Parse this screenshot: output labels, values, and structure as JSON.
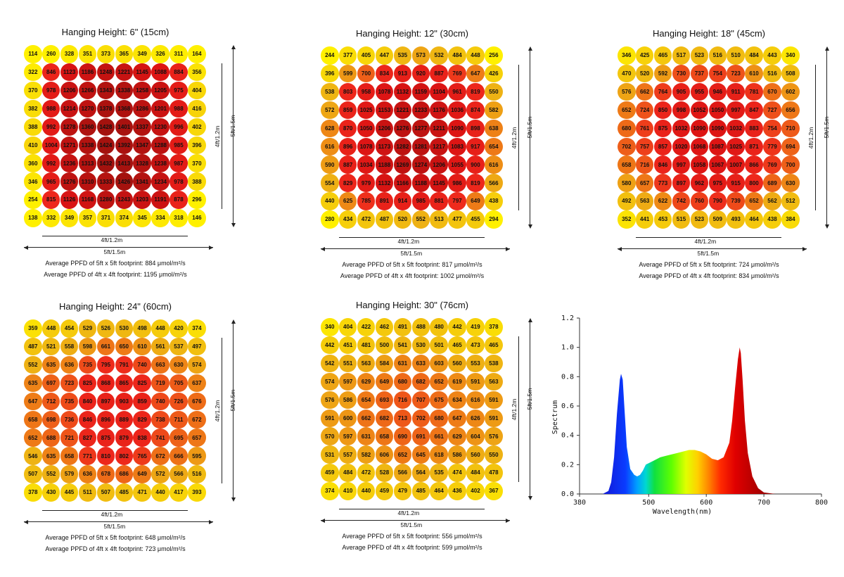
{
  "dims": {
    "inner": "4ft/1.2m",
    "outer": "5ft/1.5m"
  },
  "avg_5ft_label": "Average PPFD of 5ft x 5ft footprint:",
  "avg_4ft_label": "Average PPFD of 4ft x 4ft footprint:",
  "unit": "μmol/m²/s",
  "color_scale": {
    "low": "#ffff00",
    "mid": "#eaa00a",
    "high": "#e81e1e",
    "top": "#b01410"
  },
  "chart_data": [
    {
      "type": "heatmap",
      "title": "Hanging Height: 6\" (15cm)",
      "avg_5ft": "884",
      "avg_4ft": "1195",
      "grid": [
        [
          114,
          260,
          328,
          351,
          373,
          365,
          349,
          326,
          311,
          164
        ],
        [
          322,
          846,
          1123,
          1186,
          1248,
          1221,
          1145,
          1088,
          884,
          356
        ],
        [
          370,
          978,
          1206,
          1266,
          1343,
          1338,
          1258,
          1205,
          975,
          404
        ],
        [
          382,
          988,
          1214,
          1270,
          1378,
          1368,
          1286,
          1201,
          988,
          416
        ],
        [
          388,
          992,
          1278,
          1360,
          1428,
          1401,
          1337,
          1230,
          996,
          402
        ],
        [
          410,
          1004,
          1271,
          1338,
          1424,
          1392,
          1347,
          1288,
          985,
          396
        ],
        [
          360,
          992,
          1236,
          1313,
          1432,
          1413,
          1328,
          1238,
          987,
          370
        ],
        [
          346,
          965,
          1276,
          1310,
          1333,
          1426,
          1341,
          1234,
          978,
          388
        ],
        [
          254,
          815,
          1126,
          1168,
          1280,
          1243,
          1203,
          1191,
          878,
          296
        ],
        [
          138,
          332,
          349,
          357,
          371,
          374,
          345,
          334,
          318,
          146
        ]
      ]
    },
    {
      "type": "heatmap",
      "title": "Hanging Height: 12\" (30cm)",
      "avg_5ft": "817",
      "avg_4ft": "1002",
      "grid": [
        [
          244,
          377,
          405,
          447,
          535,
          573,
          532,
          484,
          448,
          256
        ],
        [
          396,
          599,
          700,
          834,
          913,
          920,
          887,
          769,
          647,
          426
        ],
        [
          538,
          803,
          958,
          1078,
          1132,
          1159,
          1104,
          961,
          819,
          550
        ],
        [
          572,
          859,
          1025,
          1153,
          1221,
          1233,
          1176,
          1036,
          874,
          582
        ],
        [
          628,
          870,
          1050,
          1206,
          1276,
          1277,
          1211,
          1090,
          898,
          638
        ],
        [
          616,
          896,
          1078,
          1173,
          1282,
          1281,
          1217,
          1083,
          917,
          654
        ],
        [
          590,
          887,
          1034,
          1188,
          1269,
          1274,
          1206,
          1055,
          900,
          616
        ],
        [
          554,
          829,
          979,
          1132,
          1166,
          1188,
          1145,
          986,
          819,
          566
        ],
        [
          440,
          625,
          785,
          891,
          914,
          985,
          881,
          797,
          649,
          438
        ],
        [
          280,
          434,
          472,
          487,
          520,
          552,
          513,
          477,
          455,
          294
        ]
      ]
    },
    {
      "type": "heatmap",
      "title": "Hanging Height: 18\" (45cm)",
      "avg_5ft": "724",
      "avg_4ft": "834",
      "grid": [
        [
          346,
          425,
          465,
          517,
          523,
          516,
          510,
          484,
          443,
          340
        ],
        [
          470,
          520,
          592,
          730,
          737,
          754,
          723,
          610,
          516,
          508
        ],
        [
          576,
          662,
          764,
          905,
          955,
          946,
          911,
          781,
          670,
          602
        ],
        [
          652,
          724,
          850,
          998,
          1052,
          1050,
          997,
          847,
          727,
          656
        ],
        [
          680,
          761,
          875,
          1032,
          1090,
          1090,
          1032,
          883,
          754,
          710
        ],
        [
          702,
          757,
          857,
          1020,
          1068,
          1087,
          1025,
          871,
          779,
          694
        ],
        [
          658,
          716,
          846,
          997,
          1058,
          1067,
          1007,
          866,
          769,
          700
        ],
        [
          580,
          657,
          773,
          897,
          962,
          975,
          915,
          800,
          689,
          630
        ],
        [
          492,
          563,
          622,
          742,
          760,
          790,
          739,
          652,
          562,
          512
        ],
        [
          352,
          441,
          453,
          515,
          523,
          509,
          493,
          464,
          438,
          384
        ]
      ]
    },
    {
      "type": "heatmap",
      "title": "Hanging Height: 24\" (60cm)",
      "avg_5ft": "648",
      "avg_4ft": "723",
      "grid": [
        [
          359,
          448,
          454,
          529,
          526,
          530,
          498,
          448,
          420,
          374
        ],
        [
          487,
          521,
          558,
          598,
          661,
          650,
          610,
          561,
          537,
          497
        ],
        [
          552,
          635,
          636,
          735,
          795,
          791,
          740,
          663,
          630,
          574
        ],
        [
          635,
          697,
          723,
          825,
          868,
          865,
          825,
          719,
          705,
          637
        ],
        [
          647,
          712,
          735,
          840,
          897,
          903,
          859,
          740,
          726,
          676
        ],
        [
          658,
          698,
          736,
          846,
          896,
          889,
          829,
          738,
          711,
          672
        ],
        [
          652,
          688,
          721,
          827,
          875,
          879,
          838,
          741,
          695,
          657
        ],
        [
          546,
          635,
          658,
          771,
          810,
          802,
          765,
          672,
          666,
          595
        ],
        [
          507,
          552,
          579,
          636,
          678,
          686,
          649,
          572,
          566,
          516
        ],
        [
          378,
          430,
          445,
          511,
          507,
          485,
          471,
          440,
          417,
          393
        ]
      ]
    },
    {
      "type": "heatmap",
      "title": "Hanging Height: 30\" (76cm)",
      "avg_5ft": "556",
      "avg_4ft": "599",
      "grid": [
        [
          340,
          404,
          422,
          462,
          491,
          488,
          480,
          442,
          419,
          378
        ],
        [
          442,
          451,
          481,
          500,
          541,
          530,
          501,
          465,
          473,
          465
        ],
        [
          542,
          551,
          563,
          584,
          631,
          633,
          603,
          560,
          553,
          538
        ],
        [
          574,
          597,
          629,
          649,
          680,
          682,
          652,
          619,
          591,
          563
        ],
        [
          576,
          586,
          654,
          693,
          716,
          707,
          675,
          634,
          616,
          591
        ],
        [
          591,
          600,
          662,
          682,
          713,
          702,
          680,
          647,
          626,
          591
        ],
        [
          570,
          597,
          631,
          658,
          690,
          691,
          661,
          629,
          604,
          576
        ],
        [
          531,
          557,
          582,
          606,
          652,
          645,
          618,
          586,
          560,
          550
        ],
        [
          459,
          484,
          472,
          528,
          566,
          564,
          535,
          474,
          484,
          478
        ],
        [
          374,
          410,
          440,
          459,
          479,
          485,
          464,
          436,
          402,
          367
        ]
      ]
    },
    {
      "type": "area",
      "xlabel": "Wavelength(nm)",
      "ylabel": "Spectrum",
      "xlim": [
        380,
        800
      ],
      "ylim": [
        0,
        1.2
      ],
      "xticks": [
        "380",
        "500",
        "600",
        "700",
        "800"
      ],
      "yticks": [
        "0.0",
        "0.2",
        "0.4",
        "0.6",
        "0.8",
        "1.0",
        "1.2"
      ],
      "x": [
        380,
        420,
        430,
        435,
        440,
        445,
        450,
        452,
        455,
        458,
        462,
        468,
        475,
        480,
        485,
        490,
        495,
        500,
        510,
        520,
        530,
        540,
        550,
        560,
        570,
        580,
        590,
        600,
        610,
        620,
        630,
        640,
        645,
        650,
        655,
        658,
        660,
        663,
        667,
        672,
        680,
        690,
        700,
        720,
        740,
        760,
        780,
        800
      ],
      "y": [
        0,
        0,
        0.02,
        0.08,
        0.25,
        0.55,
        0.78,
        0.82,
        0.78,
        0.58,
        0.32,
        0.17,
        0.13,
        0.12,
        0.13,
        0.16,
        0.2,
        0.21,
        0.23,
        0.25,
        0.26,
        0.27,
        0.28,
        0.29,
        0.3,
        0.3,
        0.29,
        0.27,
        0.24,
        0.23,
        0.25,
        0.35,
        0.5,
        0.72,
        0.92,
        1.0,
        0.96,
        0.78,
        0.5,
        0.28,
        0.12,
        0.04,
        0.01,
        0,
        0,
        0,
        0,
        0
      ]
    }
  ]
}
